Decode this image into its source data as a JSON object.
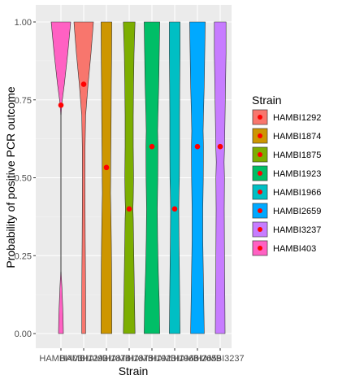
{
  "chart_data": {
    "type": "violin",
    "xlabel": "Strain",
    "ylabel": "Probability of positive PCR outcome",
    "ylim": [
      0,
      1
    ],
    "yticks": [
      "0.00",
      "0.25",
      "0.50",
      "0.75",
      "1.00"
    ],
    "categories": [
      "HAMBI403",
      "HAMBI1292",
      "HAMBI1874",
      "HAMBI1875",
      "HAMBI1923",
      "HAMBI1966",
      "HAMBI2659",
      "HAMBI3237"
    ],
    "means": [
      0.733,
      0.8,
      0.533,
      0.4,
      0.6,
      0.4,
      0.6,
      0.6
    ],
    "violins": [
      {
        "strain": "HAMBI403",
        "color": "#FF61C3",
        "profile": [
          [
            0,
            0.25
          ],
          [
            0.06,
            0.22
          ],
          [
            0.15,
            0.1
          ],
          [
            0.2,
            0.02
          ],
          [
            0.3,
            0.02
          ],
          [
            0.4,
            0.02
          ],
          [
            0.5,
            0.02
          ],
          [
            0.6,
            0.02
          ],
          [
            0.7,
            0.02
          ],
          [
            0.74,
            0.1
          ],
          [
            0.8,
            0.35
          ],
          [
            0.9,
            0.7
          ],
          [
            1.0,
            1.0
          ]
        ]
      },
      {
        "strain": "HAMBI1292",
        "color": "#F8766D",
        "profile": [
          [
            0,
            0.2
          ],
          [
            0.1,
            0.2
          ],
          [
            0.2,
            0.18
          ],
          [
            0.3,
            0.16
          ],
          [
            0.4,
            0.14
          ],
          [
            0.5,
            0.13
          ],
          [
            0.6,
            0.14
          ],
          [
            0.7,
            0.2
          ],
          [
            0.8,
            0.45
          ],
          [
            0.9,
            0.75
          ],
          [
            1.0,
            1.0
          ]
        ]
      },
      {
        "strain": "HAMBI1874",
        "color": "#CD9600",
        "profile": [
          [
            0,
            0.55
          ],
          [
            0.1,
            0.55
          ],
          [
            0.2,
            0.53
          ],
          [
            0.3,
            0.5
          ],
          [
            0.4,
            0.45
          ],
          [
            0.45,
            0.42
          ],
          [
            0.5,
            0.43
          ],
          [
            0.55,
            0.44
          ],
          [
            0.6,
            0.46
          ],
          [
            0.7,
            0.48
          ],
          [
            0.8,
            0.5
          ],
          [
            0.9,
            0.53
          ],
          [
            1.0,
            0.55
          ]
        ]
      },
      {
        "strain": "HAMBI1875",
        "color": "#7CAE00",
        "profile": [
          [
            0,
            0.6
          ],
          [
            0.1,
            0.55
          ],
          [
            0.2,
            0.5
          ],
          [
            0.3,
            0.45
          ],
          [
            0.37,
            0.42
          ],
          [
            0.4,
            0.38
          ],
          [
            0.43,
            0.42
          ],
          [
            0.5,
            0.45
          ],
          [
            0.6,
            0.42
          ],
          [
            0.7,
            0.42
          ],
          [
            0.8,
            0.45
          ],
          [
            0.9,
            0.5
          ],
          [
            1.0,
            0.6
          ]
        ]
      },
      {
        "strain": "HAMBI1923",
        "color": "#00BE67",
        "profile": [
          [
            0,
            0.8
          ],
          [
            0.1,
            0.75
          ],
          [
            0.2,
            0.65
          ],
          [
            0.3,
            0.58
          ],
          [
            0.4,
            0.55
          ],
          [
            0.5,
            0.6
          ],
          [
            0.6,
            0.62
          ],
          [
            0.65,
            0.58
          ],
          [
            0.7,
            0.62
          ],
          [
            0.8,
            0.7
          ],
          [
            0.9,
            0.75
          ],
          [
            1.0,
            0.8
          ]
        ]
      },
      {
        "strain": "HAMBI1966",
        "color": "#00BFC4",
        "profile": [
          [
            0,
            0.55
          ],
          [
            0.1,
            0.52
          ],
          [
            0.2,
            0.48
          ],
          [
            0.3,
            0.44
          ],
          [
            0.4,
            0.42
          ],
          [
            0.45,
            0.44
          ],
          [
            0.5,
            0.48
          ],
          [
            0.6,
            0.5
          ],
          [
            0.7,
            0.5
          ],
          [
            0.8,
            0.52
          ],
          [
            0.9,
            0.55
          ],
          [
            1.0,
            0.55
          ]
        ]
      },
      {
        "strain": "HAMBI2659",
        "color": "#00A9FF",
        "profile": [
          [
            0,
            0.7
          ],
          [
            0.1,
            0.65
          ],
          [
            0.2,
            0.6
          ],
          [
            0.3,
            0.55
          ],
          [
            0.4,
            0.55
          ],
          [
            0.5,
            0.6
          ],
          [
            0.6,
            0.62
          ],
          [
            0.65,
            0.58
          ],
          [
            0.7,
            0.62
          ],
          [
            0.8,
            0.7
          ],
          [
            0.9,
            0.75
          ],
          [
            1.0,
            0.8
          ]
        ]
      },
      {
        "strain": "HAMBI3237",
        "color": "#C77CFF",
        "profile": [
          [
            0,
            0.5
          ],
          [
            0.1,
            0.48
          ],
          [
            0.2,
            0.45
          ],
          [
            0.3,
            0.43
          ],
          [
            0.4,
            0.42
          ],
          [
            0.5,
            0.44
          ],
          [
            0.55,
            0.4
          ],
          [
            0.6,
            0.45
          ],
          [
            0.7,
            0.5
          ],
          [
            0.8,
            0.55
          ],
          [
            0.9,
            0.6
          ],
          [
            1.0,
            0.6
          ]
        ]
      }
    ],
    "mean_marker_color": "#FF0000",
    "panel_background": "#EBEBEB",
    "grid": true,
    "legend": {
      "title": "Strain",
      "position": "right",
      "items": [
        {
          "label": "HAMBI1292",
          "color": "#F8766D"
        },
        {
          "label": "HAMBI1874",
          "color": "#CD9600"
        },
        {
          "label": "HAMBI1875",
          "color": "#7CAE00"
        },
        {
          "label": "HAMBI1923",
          "color": "#00BE67"
        },
        {
          "label": "HAMBI1966",
          "color": "#00BFC4"
        },
        {
          "label": "HAMBI2659",
          "color": "#00A9FF"
        },
        {
          "label": "HAMBI3237",
          "color": "#C77CFF"
        },
        {
          "label": "HAMBI403",
          "color": "#FF61C3"
        }
      ]
    }
  }
}
